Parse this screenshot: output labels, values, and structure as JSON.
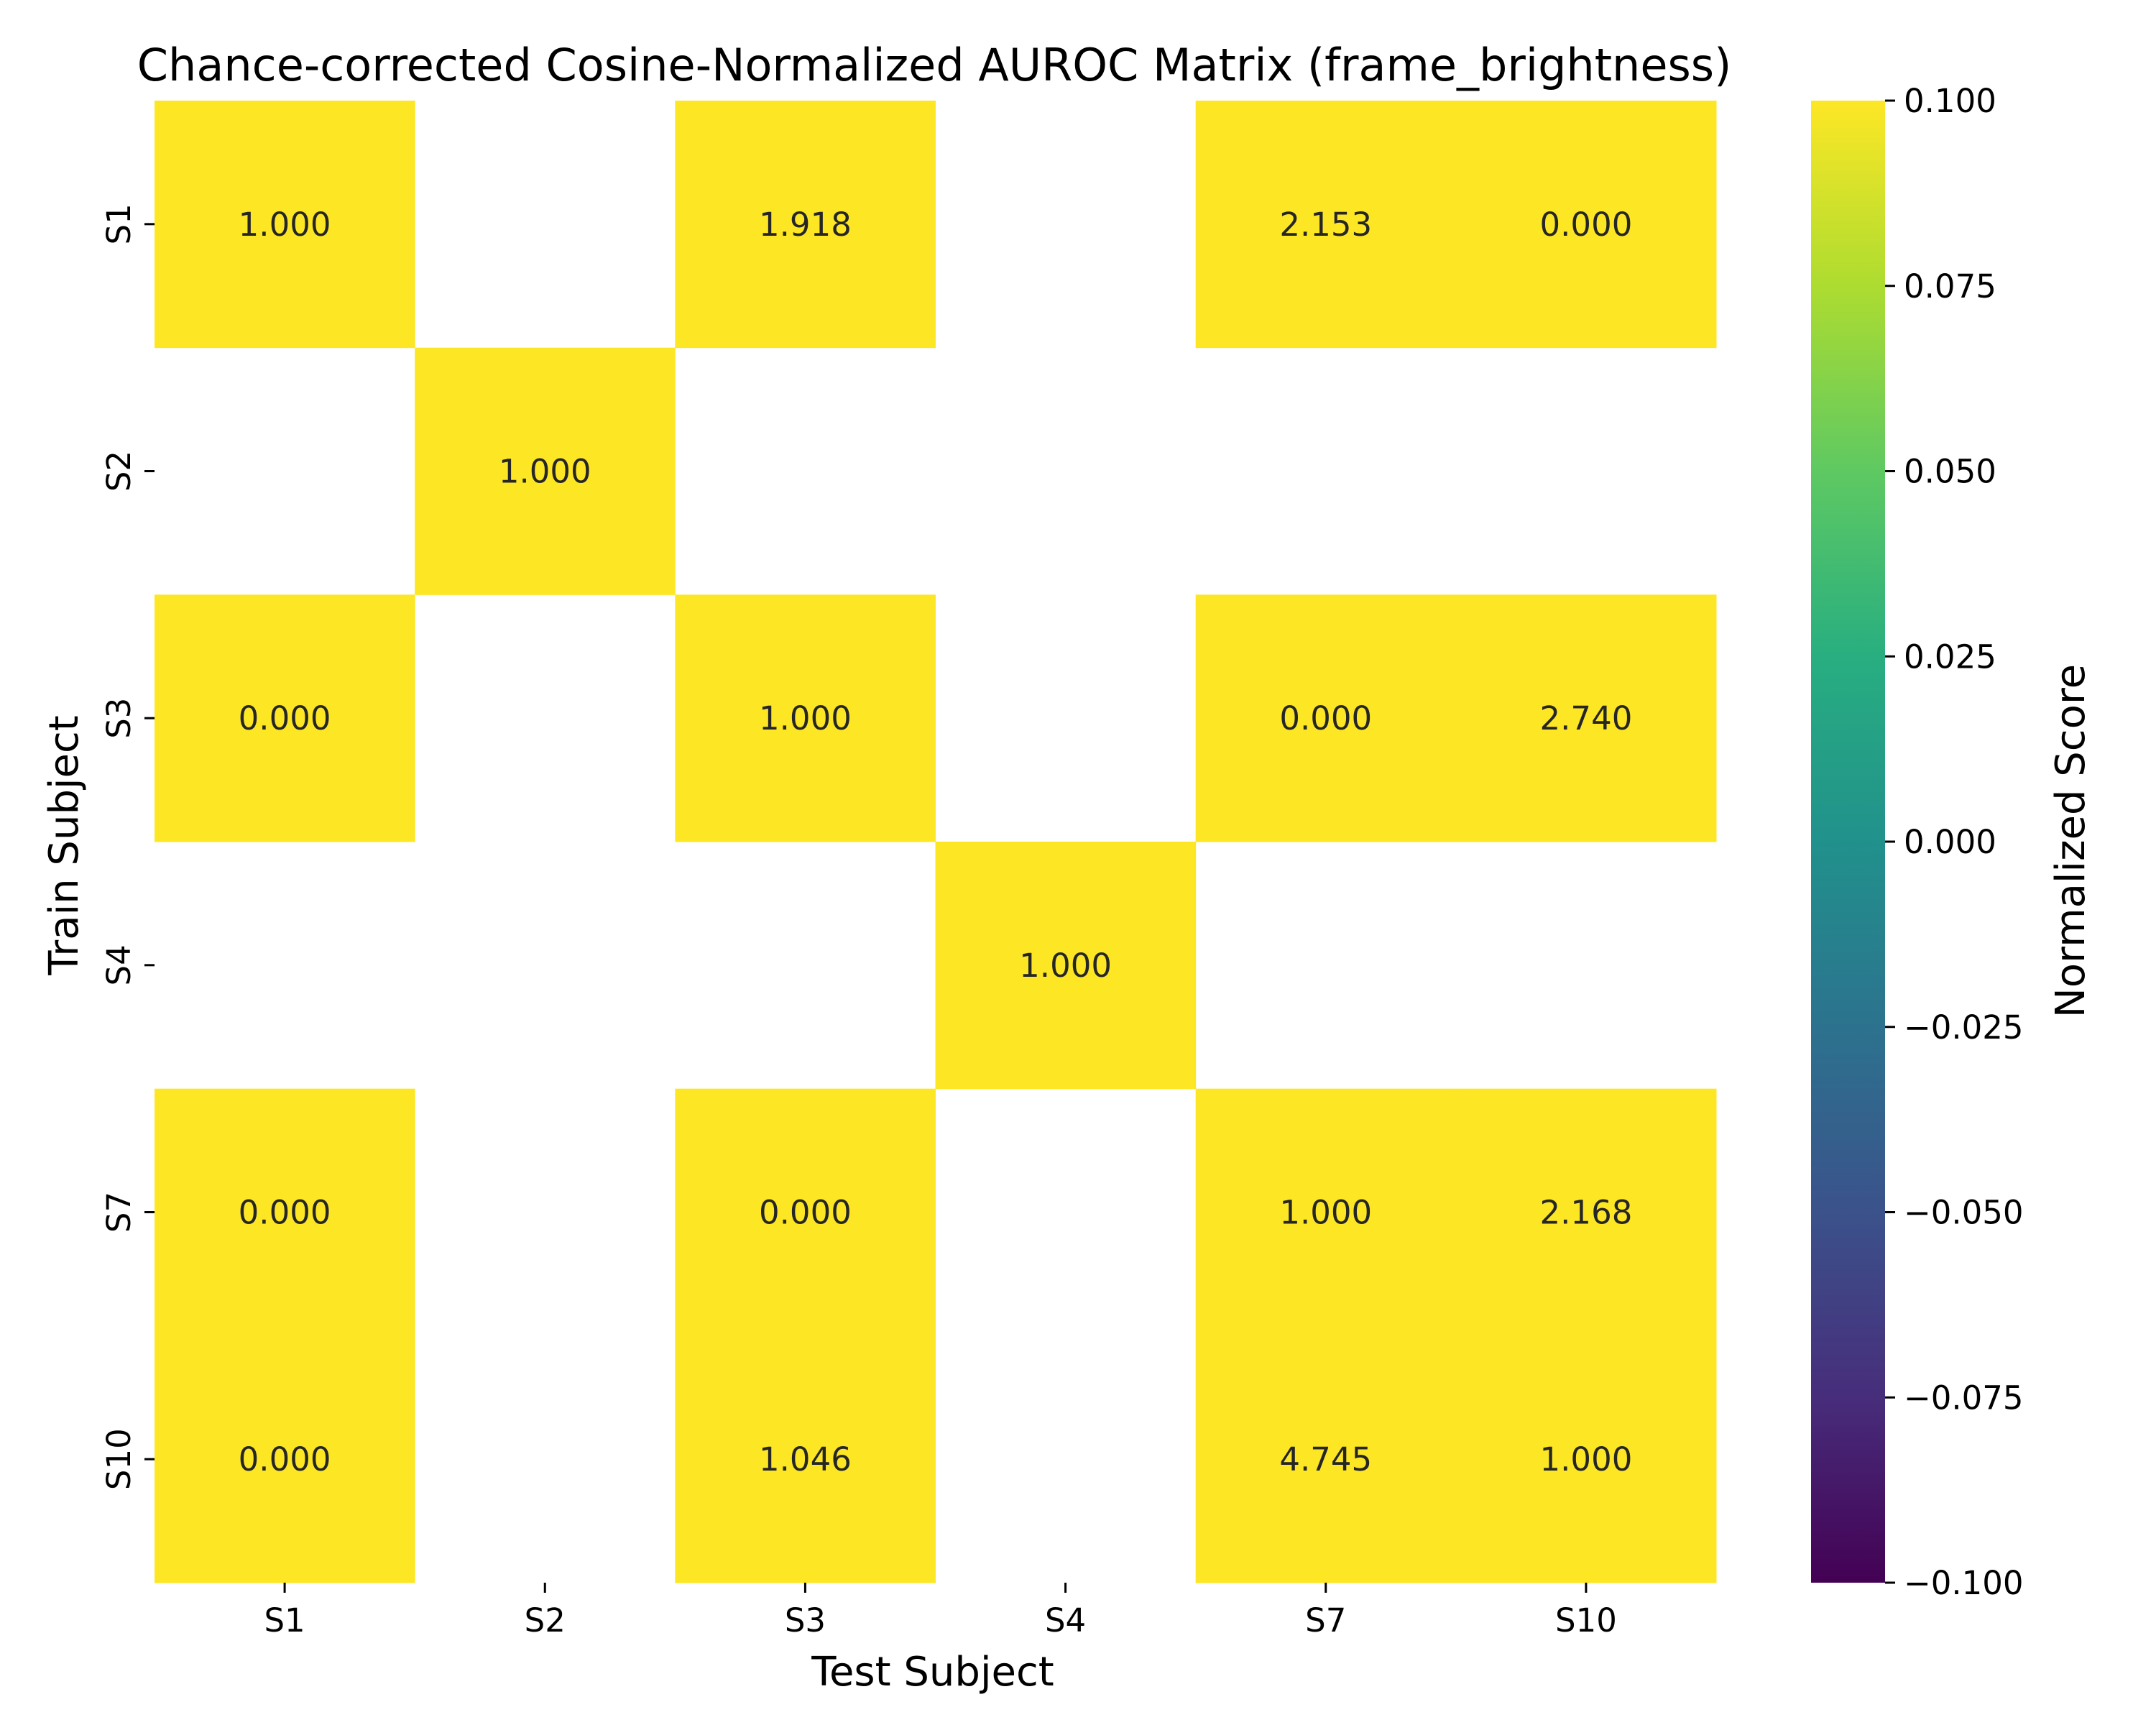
{
  "chart_data": {
    "type": "heatmap",
    "title": "Chance-corrected Cosine-Normalized AUROC Matrix (frame_brightness)",
    "xlabel": "Test Subject",
    "ylabel": "Train Subject",
    "x_categories": [
      "S1",
      "S2",
      "S3",
      "S4",
      "S7",
      "S10"
    ],
    "y_categories": [
      "S1",
      "S2",
      "S3",
      "S4",
      "S7",
      "S10"
    ],
    "values": [
      [
        1.0,
        null,
        1.918,
        null,
        2.153,
        0.0
      ],
      [
        null,
        1.0,
        null,
        null,
        null,
        null
      ],
      [
        0.0,
        null,
        1.0,
        null,
        0.0,
        2.74
      ],
      [
        null,
        null,
        null,
        1.0,
        null,
        null
      ],
      [
        0.0,
        null,
        0.0,
        null,
        1.0,
        2.168
      ],
      [
        0.0,
        null,
        1.046,
        null,
        4.745,
        1.0
      ]
    ],
    "value_labels": [
      [
        "1.000",
        "",
        "1.918",
        "",
        "2.153",
        "0.000"
      ],
      [
        "",
        "1.000",
        "",
        "",
        "",
        ""
      ],
      [
        "0.000",
        "",
        "1.000",
        "",
        "0.000",
        "2.740"
      ],
      [
        "",
        "",
        "",
        "1.000",
        "",
        ""
      ],
      [
        "0.000",
        "",
        "0.000",
        "",
        "1.000",
        "2.168"
      ],
      [
        "0.000",
        "",
        "1.046",
        "",
        "4.745",
        "1.000"
      ]
    ],
    "colorbar": {
      "label": "Normalized Score",
      "range": [
        -0.1,
        0.1
      ],
      "ticks": [
        0.1,
        0.075,
        0.05,
        0.025,
        0.0,
        -0.025,
        -0.05,
        -0.075,
        -0.1
      ],
      "tick_labels": [
        "0.100",
        "0.075",
        "0.050",
        "0.025",
        "0.000",
        "−0.025",
        "−0.050",
        "−0.075",
        "−0.100"
      ],
      "colormap": "viridis"
    },
    "colors": {
      "high": "#fde725",
      "mid": "#21918c",
      "low": "#440154",
      "text_on_light": "#262626",
      "text_on_dark": "#ffffff"
    },
    "grid": false
  }
}
